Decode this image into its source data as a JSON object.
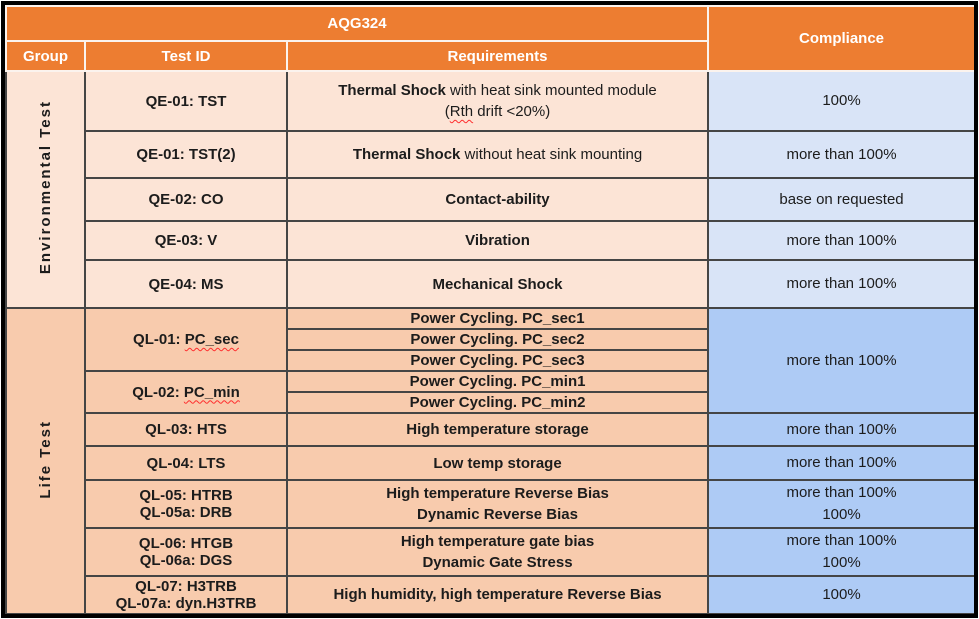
{
  "colors": {
    "header_orange": "#ED7D31",
    "header_text": "#FFFFFF",
    "environmental_peach": "#FCE4D6",
    "environmental_blue": "#D9E4F7",
    "life_peach": "#F8CBAD",
    "life_blue": "#AECBF5",
    "grid_line": "#454545",
    "frame_border": "#000000",
    "squiggle_red": "#FF2D2D"
  },
  "header": {
    "aqg_title": "AQG324",
    "compliance_label": "Compliance",
    "group_label": "Group",
    "test_id_label": "Test ID",
    "requirements_label": "Requirements"
  },
  "groups": {
    "environmental_label": "Environmental Test",
    "life_label": "Life Test"
  },
  "environmental_rows": {
    "tst": {
      "test_id": "QE-01: TST",
      "req_bold": "Thermal Shock",
      "req_regular": " with heat sink mounted module",
      "req_line2_open": "(",
      "req_line2_term": "Rth",
      "req_line2_rest": " drift <20%)",
      "compliance": "100%"
    },
    "tst2": {
      "test_id": "QE-01: TST(2)",
      "req_bold": "Thermal Shock",
      "req_regular": " without heat sink mounting",
      "compliance": "more than 100%"
    },
    "co": {
      "test_id": "QE-02: CO",
      "req_bold": "Contact-ability",
      "compliance": "base on requested"
    },
    "v": {
      "test_id": "QE-03: V",
      "req_bold": "Vibration",
      "compliance": "more than 100%"
    },
    "ms": {
      "test_id": "QE-04: MS",
      "req_bold": "Mechanical Shock",
      "compliance": "more than 100%"
    }
  },
  "life_rows": {
    "pc": {
      "ql01_prefix": "QL-01: ",
      "ql01_term": "PC_sec",
      "ql02_prefix": "QL-02: ",
      "ql02_term": "PC_min",
      "sec1": "Power Cycling. PC_sec1",
      "sec2": "Power Cycling. PC_sec2",
      "sec3": "Power Cycling. PC_sec3",
      "min1": "Power Cycling. PC_min1",
      "min2": "Power Cycling. PC_min2",
      "compliance": "more than 100%"
    },
    "hts": {
      "test_id": "QL-03: HTS",
      "req": "High temperature storage",
      "compliance": "more than 100%"
    },
    "lts": {
      "test_id": "QL-04: LTS",
      "req": "Low temp storage",
      "compliance": "more than 100%"
    },
    "htrb": {
      "test_id_line1": "QL-05: HTRB",
      "test_id_line2": "QL-05a: DRB",
      "req_line1": "High temperature Reverse Bias",
      "req_line2": "Dynamic Reverse Bias",
      "compliance_line1": "more than 100%",
      "compliance_line2": "100%"
    },
    "htgb": {
      "test_id_line1": "QL-06: HTGB",
      "test_id_line2": "QL-06a: DGS",
      "req_line1": "High temperature gate bias",
      "req_line2": "Dynamic Gate Stress",
      "compliance_line1": "more than 100%",
      "compliance_line2": "100%"
    },
    "h3trb": {
      "test_id_line1": "QL-07: H3TRB",
      "test_id_line2": "QL-07a: dyn.H3TRB",
      "req": "High humidity, high temperature Reverse Bias",
      "compliance": "100%"
    }
  }
}
